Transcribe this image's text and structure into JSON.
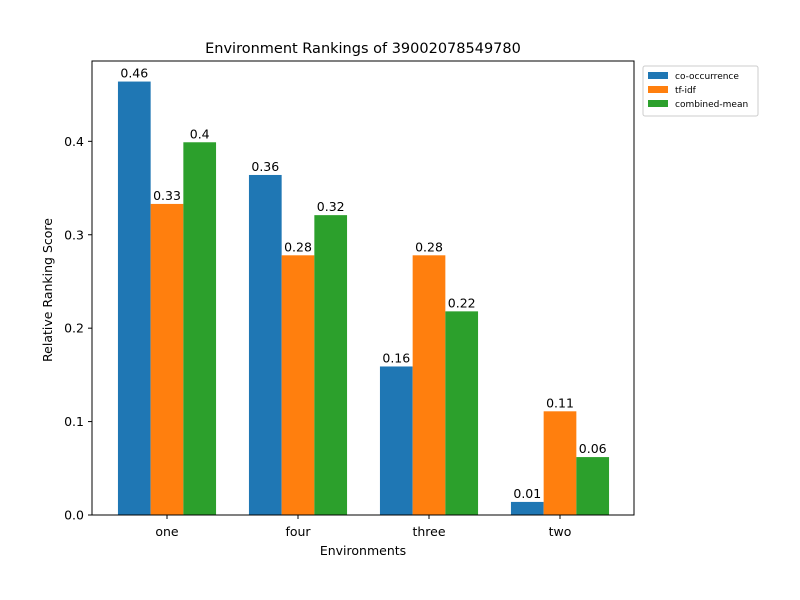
{
  "chart_data": {
    "type": "bar",
    "title": "Environment Rankings of 39002078549780",
    "xlabel": "Environments",
    "ylabel": "Relative Ranking Score",
    "categories": [
      "one",
      "four",
      "three",
      "two"
    ],
    "ylim": [
      0,
      0.486
    ],
    "yticks": [
      "0.0",
      "0.1",
      "0.2",
      "0.3",
      "0.4"
    ],
    "yticks_values": [
      0,
      0.1,
      0.2,
      0.3,
      0.4
    ],
    "legend_position": "outside-top-right",
    "grid": false,
    "series": [
      {
        "name": "co-occurrence",
        "color": "#1f77b4",
        "values": [
          0.464,
          0.364,
          0.159,
          0.014
        ],
        "labels": [
          "0.46",
          "0.36",
          "0.16",
          "0.01"
        ]
      },
      {
        "name": "tf-idf",
        "color": "#ff7f0e",
        "values": [
          0.333,
          0.278,
          0.278,
          0.111
        ],
        "labels": [
          "0.33",
          "0.28",
          "0.28",
          "0.11"
        ]
      },
      {
        "name": "combined-mean",
        "color": "#2ca02c",
        "values": [
          0.399,
          0.321,
          0.218,
          0.062
        ],
        "labels": [
          "0.4",
          "0.32",
          "0.22",
          "0.06"
        ]
      }
    ]
  }
}
